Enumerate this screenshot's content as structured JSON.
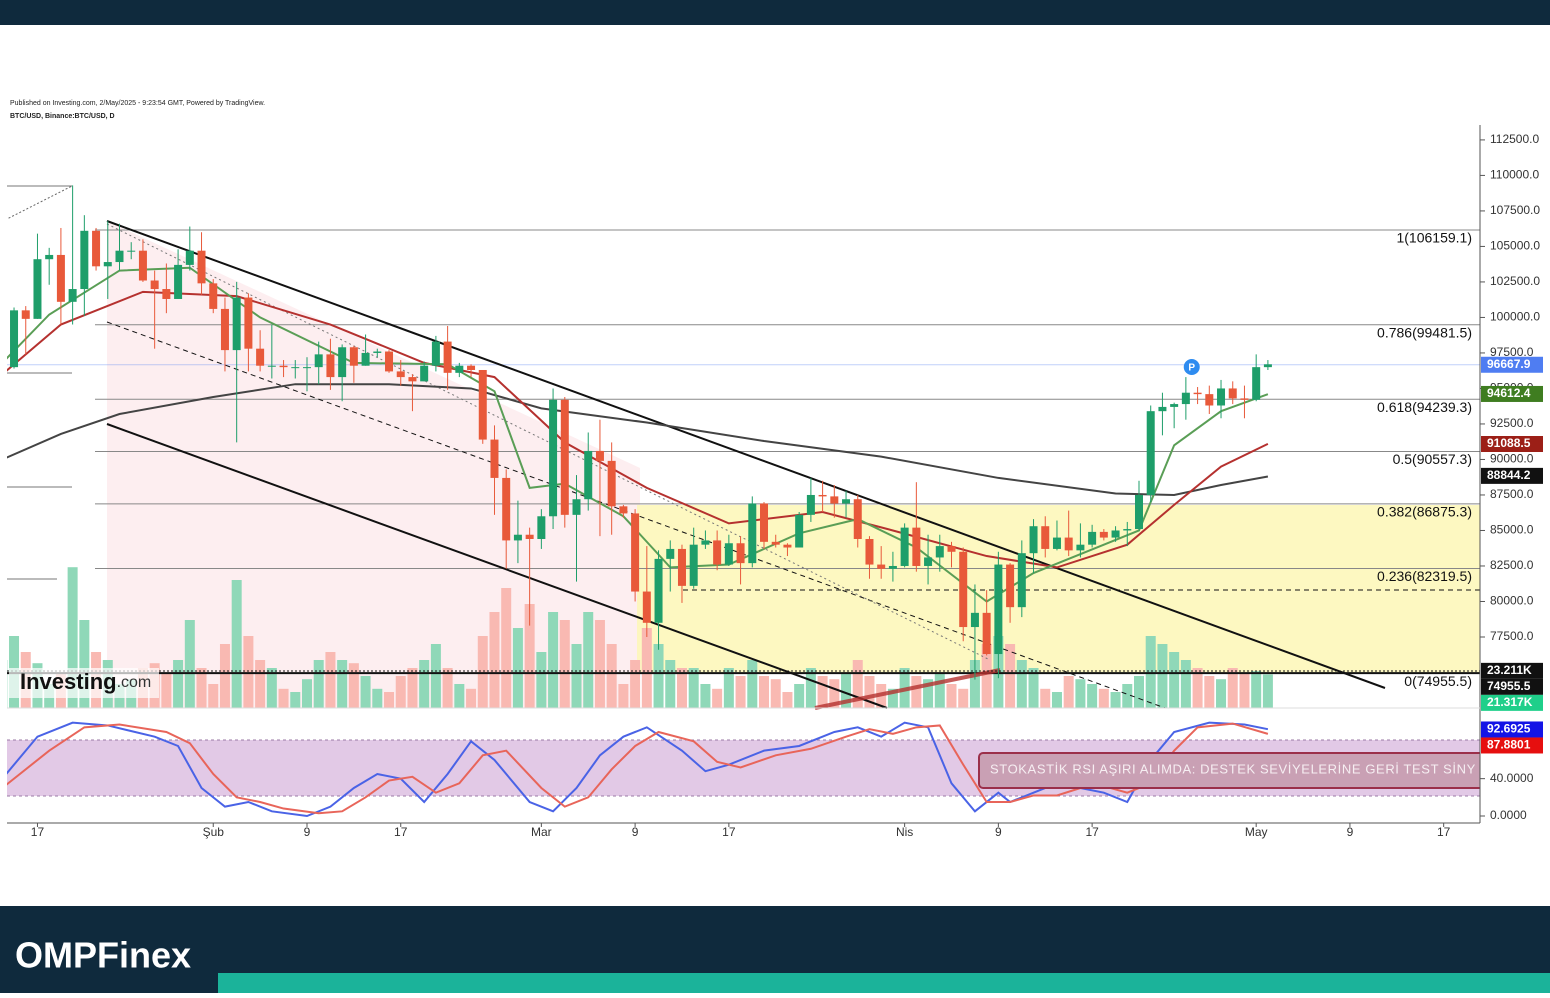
{
  "chart_data": {
    "type": "candlestick",
    "subtitle": "Published on Investing.com, 2/May/2025 - 9:23:54 GMT, Powered by TradingView.",
    "title": "BTC/USD, Binance:BTC/USD, D",
    "xlim": [
      0.4,
      126.1
    ],
    "xticks": [
      {
        "value": 3,
        "label": "17"
      },
      {
        "value": 18,
        "label": "Şub"
      },
      {
        "value": 26,
        "label": "9"
      },
      {
        "value": 34,
        "label": "17"
      },
      {
        "value": 46,
        "label": "Mar"
      },
      {
        "value": 54,
        "label": "9"
      },
      {
        "value": 62,
        "label": "17"
      },
      {
        "value": 77,
        "label": "Nis"
      },
      {
        "value": 85,
        "label": "9"
      },
      {
        "value": 93,
        "label": "17"
      },
      {
        "value": 107,
        "label": "May"
      },
      {
        "value": 115,
        "label": "9"
      },
      {
        "value": 123,
        "label": "17"
      }
    ],
    "ylim": [
      72500,
      113550
    ],
    "yticks": [
      {
        "value": 77500,
        "label": "77500.0"
      },
      {
        "value": 80000,
        "label": "80000.0"
      },
      {
        "value": 82500,
        "label": "82500.0"
      },
      {
        "value": 85000,
        "label": "85000.0"
      },
      {
        "value": 87500,
        "label": "87500.0"
      },
      {
        "value": 90000,
        "label": "90000.0"
      },
      {
        "value": 92500,
        "label": "92500.0"
      },
      {
        "value": 95000,
        "label": "95000.0"
      },
      {
        "value": 97500,
        "label": "97500.0"
      },
      {
        "value": 100000,
        "label": "100000.0"
      },
      {
        "value": 102500,
        "label": "102500.0"
      },
      {
        "value": 105000,
        "label": "105000.0"
      },
      {
        "value": 107500,
        "label": "107500.0"
      },
      {
        "value": 110000,
        "label": "110000.0"
      },
      {
        "value": 112500,
        "label": "112500.0"
      }
    ],
    "up_color": "#1e9e6a",
    "down_color": "#e8593a",
    "open": [
      94500,
      96500,
      100500,
      99900,
      104100,
      104400,
      101100,
      102000,
      106100,
      103600,
      103900,
      104700,
      104700,
      102600,
      102000,
      101300,
      103700,
      104700,
      102400,
      100600,
      97700,
      101400,
      97800,
      96600,
      96600,
      96500,
      96500,
      96500,
      97400,
      95800,
      97900,
      96600,
      97500,
      97600,
      96200,
      95800,
      95500,
      96600,
      98300,
      96100,
      96600,
      96300,
      91400,
      88700,
      84300,
      84700,
      84400,
      86000,
      94200,
      86100,
      87200,
      90600,
      89900,
      86700,
      86200,
      80700,
      78500,
      83000,
      83700,
      81100,
      84000,
      84300,
      82600,
      84100,
      82700,
      86900,
      84200,
      84000,
      83800,
      86100,
      87500,
      87400,
      86900,
      87200,
      84400,
      82600,
      82300,
      82500,
      85200,
      82500,
      83100,
      83900,
      83500,
      78200,
      79200,
      76300,
      82600,
      79600,
      83400,
      85300,
      83700,
      84500,
      83600,
      84000,
      84900,
      84500,
      85000,
      85100,
      87500,
      93400,
      93700,
      93900,
      94700,
      94600,
      93800,
      95000,
      94300,
      94200,
      96500
    ],
    "high": [
      97300,
      100700,
      100800,
      105900,
      104900,
      106300,
      109300,
      107200,
      106300,
      106800,
      106600,
      105300,
      105500,
      103300,
      103800,
      104800,
      106400,
      106000,
      102700,
      101400,
      102500,
      101700,
      99100,
      99500,
      97000,
      97000,
      97200,
      98300,
      98500,
      98100,
      98000,
      98800,
      97800,
      97700,
      97000,
      96000,
      96900,
      98700,
      99400,
      96800,
      96700,
      96300,
      92400,
      89300,
      87100,
      85200,
      86500,
      95000,
      94400,
      88900,
      91900,
      92800,
      91200,
      86800,
      86500,
      83900,
      83600,
      84300,
      84000,
      85200,
      85000,
      85000,
      84700,
      84600,
      87400,
      87000,
      84700,
      84100,
      86300,
      88700,
      88500,
      88200,
      87800,
      87500,
      84600,
      83900,
      83500,
      85500,
      88400,
      84700,
      84700,
      84200,
      83800,
      81200,
      80800,
      83500,
      82700,
      84300,
      85800,
      86000,
      85700,
      86400,
      85500,
      85400,
      85100,
      85300,
      85600,
      88500,
      93800,
      94700,
      94000,
      95800,
      95100,
      95200,
      95600,
      95500,
      95200,
      97400,
      97000
    ],
    "low": [
      94300,
      96400,
      97400,
      99900,
      102300,
      99500,
      99500,
      100100,
      103300,
      101300,
      103300,
      104100,
      102500,
      97800,
      100300,
      101300,
      103300,
      101600,
      100300,
      96200,
      91200,
      96200,
      96200,
      95700,
      95800,
      95700,
      94800,
      95300,
      94900,
      94100,
      95400,
      96600,
      97200,
      96100,
      95200,
      93400,
      95500,
      96200,
      94900,
      95800,
      95800,
      91100,
      86100,
      82300,
      82700,
      78300,
      83700,
      85100,
      85200,
      81400,
      86400,
      84600,
      84700,
      85900,
      80000,
      77500,
      76600,
      80700,
      79900,
      80900,
      83700,
      82200,
      82500,
      81200,
      82400,
      83700,
      83800,
      83200,
      83800,
      85600,
      86300,
      85900,
      85900,
      83800,
      81600,
      81600,
      81400,
      82400,
      82100,
      81200,
      82100,
      82400,
      77200,
      74500,
      76200,
      74600,
      78500,
      78900,
      82000,
      83100,
      83600,
      83200,
      83100,
      83800,
      84300,
      84200,
      83900,
      85000,
      87000,
      91700,
      92200,
      92800,
      93900,
      93200,
      92900,
      93900,
      92900,
      94100,
      96300
    ],
    "close": [
      96500,
      100500,
      99900,
      104100,
      104400,
      101100,
      102000,
      106100,
      103600,
      103900,
      104700,
      104700,
      102600,
      102000,
      101300,
      103700,
      104700,
      102400,
      100600,
      97700,
      101400,
      97800,
      96600,
      96600,
      96500,
      96500,
      96500,
      97400,
      95800,
      97900,
      96600,
      97500,
      97600,
      96200,
      95800,
      95500,
      96600,
      98300,
      96100,
      96600,
      96300,
      91400,
      88700,
      84300,
      84700,
      84400,
      86000,
      94200,
      86100,
      87200,
      90600,
      89900,
      86700,
      86200,
      80700,
      78500,
      83000,
      83700,
      81100,
      84000,
      84300,
      82600,
      84100,
      82700,
      86900,
      84200,
      84000,
      83800,
      86100,
      87500,
      87400,
      86900,
      87200,
      84400,
      82600,
      82300,
      82500,
      85200,
      82500,
      83100,
      83900,
      83500,
      78200,
      79200,
      76300,
      82600,
      79600,
      83400,
      85300,
      83700,
      84500,
      83600,
      84000,
      84900,
      84500,
      85000,
      85100,
      87500,
      93400,
      93700,
      93900,
      94700,
      94600,
      93800,
      95000,
      94300,
      94200,
      96500,
      96700
    ],
    "lines": [
      {
        "color": "#444444",
        "x": [
          0,
          5,
          10,
          18,
          25,
          33,
          40,
          46,
          55,
          65,
          75,
          85,
          95,
          100,
          104,
          108
        ],
        "values": [
          90000,
          91800,
          93200,
          94400,
          95300,
          95300,
          95000,
          93600,
          92600,
          91300,
          90200,
          88700,
          87600,
          87500,
          88200,
          88800
        ]
      },
      {
        "color": "#b5312f",
        "x": [
          0,
          5,
          12,
          20,
          28,
          36,
          42,
          48,
          55,
          62,
          70,
          76,
          84,
          90,
          96,
          100,
          104,
          108
        ],
        "values": [
          96000,
          99500,
          101800,
          101500,
          99500,
          96800,
          95800,
          91200,
          88000,
          85500,
          86300,
          85000,
          83200,
          82400,
          84000,
          86800,
          89500,
          91100
        ]
      },
      {
        "color": "#5a9e56",
        "x": [
          0,
          4,
          10,
          16,
          22,
          30,
          38,
          42,
          45,
          48,
          53,
          57,
          62,
          68,
          73,
          78,
          84,
          88,
          94,
          97,
          100,
          104,
          108
        ],
        "values": [
          96800,
          100200,
          103300,
          103500,
          100000,
          96800,
          96700,
          94800,
          88000,
          88300,
          86000,
          82400,
          82600,
          84800,
          85800,
          83800,
          80000,
          82000,
          84000,
          85000,
          91000,
          93400,
          94600
        ]
      }
    ],
    "volume": {
      "ylim": [
        0,
        90
      ],
      "up_color": "#8fd8b8",
      "down_color": "#f9b9b2",
      "values": [
        30,
        45,
        35,
        28,
        15,
        22,
        88,
        55,
        35,
        30,
        15,
        18,
        25,
        28,
        22,
        30,
        55,
        25,
        15,
        40,
        80,
        45,
        30,
        25,
        12,
        10,
        18,
        30,
        35,
        30,
        28,
        20,
        12,
        10,
        20,
        25,
        30,
        40,
        25,
        15,
        12,
        45,
        60,
        75,
        50,
        65,
        35,
        60,
        55,
        40,
        60,
        55,
        40,
        15,
        30,
        50,
        40,
        30,
        25,
        25,
        15,
        12,
        25,
        20,
        30,
        20,
        18,
        10,
        15,
        25,
        20,
        18,
        22,
        30,
        20,
        15,
        12,
        25,
        20,
        18,
        22,
        15,
        12,
        30,
        40,
        45,
        40,
        30,
        25,
        12,
        10,
        20,
        18,
        15,
        12,
        10,
        15,
        20,
        45,
        40,
        35,
        30,
        25,
        20,
        18,
        25,
        22,
        23,
        21
      ]
    },
    "fib": [
      {
        "value": 106159.1,
        "label": "1(106159.1)"
      },
      {
        "value": 99481.5,
        "label": "0.786(99481.5)"
      },
      {
        "value": 94239.3,
        "label": "0.618(94239.3)"
      },
      {
        "value": 90557.3,
        "label": "0.5(90557.3)"
      },
      {
        "value": 86875.3,
        "label": "0.382(86875.3)"
      },
      {
        "value": 82319.5,
        "label": "0.236(82319.5)"
      },
      {
        "value": 74955.5,
        "label": "0(74955.5)"
      }
    ],
    "price_labels": [
      {
        "value": 96667.9,
        "color": "#4f7df2",
        "axis": "price"
      },
      {
        "value": 94612.4,
        "color": "#3f7d20",
        "axis": "price"
      },
      {
        "value": 91088.5,
        "color": "#9c1f17",
        "axis": "price"
      },
      {
        "value": 88844.2,
        "color": "#111111",
        "axis": "price"
      },
      {
        "value": 23.211,
        "label": "23.211K",
        "color": "#111111",
        "axis": "volume"
      },
      {
        "value": 74955.5,
        "color": "#111111",
        "axis": "price"
      },
      {
        "value": 21.317,
        "label": "21.317K",
        "color": "#1fcf8a",
        "axis": "volume"
      },
      {
        "value": 92.6925,
        "color": "#1414e6",
        "axis": "stoch"
      },
      {
        "value": 87.8801,
        "color": "#e60f0f",
        "axis": "stoch"
      }
    ],
    "stoch": {
      "ylim": [
        -7.5,
        108.2
      ],
      "band": [
        20,
        80
      ],
      "yticks": [
        {
          "value": 0,
          "label": "0.0000"
        },
        {
          "value": 40,
          "label": "40.0000"
        }
      ],
      "series": [
        {
          "color": "#4a63e6",
          "x": [
            0,
            3,
            6,
            9,
            13,
            15,
            17,
            19,
            21,
            23,
            26,
            28,
            30,
            32,
            34,
            36,
            38,
            40,
            42,
            45,
            47,
            49,
            51,
            53,
            55,
            58,
            60,
            62,
            65,
            68,
            71,
            73,
            75,
            77,
            79,
            81,
            83,
            85,
            86,
            88,
            90,
            92,
            94,
            96,
            98,
            100,
            103,
            106,
            108
          ],
          "values": [
            40,
            85,
            100,
            97,
            85,
            75,
            30,
            10,
            15,
            5,
            0,
            10,
            30,
            45,
            40,
            15,
            45,
            80,
            60,
            15,
            5,
            30,
            65,
            85,
            95,
            70,
            48,
            55,
            70,
            75,
            90,
            95,
            85,
            100,
            95,
            35,
            5,
            25,
            15,
            25,
            35,
            30,
            25,
            15,
            60,
            90,
            100,
            98,
            93
          ]
        },
        {
          "color": "#e8655a",
          "x": [
            0,
            4,
            7,
            10,
            14,
            16,
            18,
            20,
            22,
            24,
            27,
            29,
            31,
            33,
            35,
            37,
            39,
            41,
            43,
            46,
            48,
            50,
            52,
            54,
            56,
            59,
            61,
            63,
            66,
            69,
            72,
            74,
            76,
            78,
            80,
            82,
            84,
            86,
            88,
            90,
            92,
            94,
            96,
            98,
            100,
            102,
            105,
            108
          ],
          "values": [
            30,
            70,
            95,
            98,
            90,
            78,
            45,
            20,
            15,
            8,
            3,
            5,
            20,
            38,
            42,
            25,
            35,
            65,
            70,
            30,
            10,
            20,
            50,
            75,
            90,
            80,
            58,
            52,
            65,
            72,
            85,
            93,
            88,
            95,
            97,
            55,
            15,
            15,
            22,
            22,
            30,
            32,
            25,
            35,
            70,
            95,
            99,
            88
          ]
        }
      ]
    },
    "alert": "STOKASTİK RSI AŞIRI ALIMDA: DESTEK SEVİYELERİNE GERİ TEST SİNY",
    "marker": "P"
  },
  "brand": {
    "logo": "Investing",
    "logo_suffix": ".com",
    "footer": "OMPFinex"
  }
}
